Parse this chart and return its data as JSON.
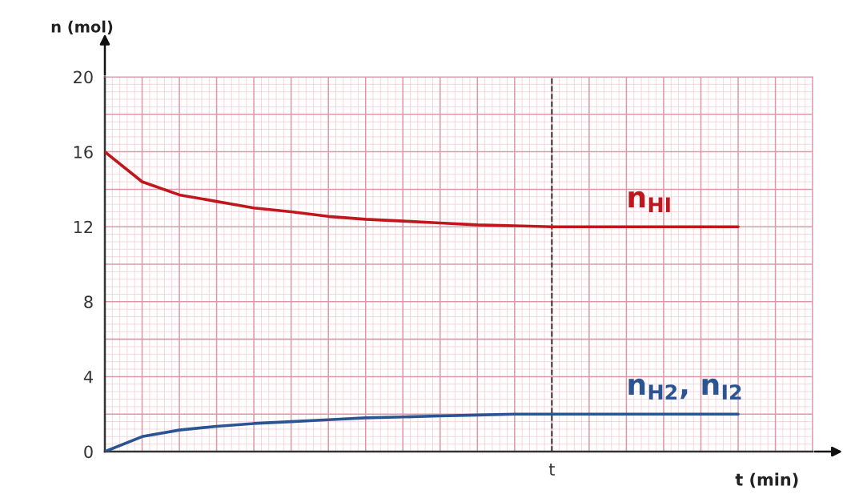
{
  "chart_data": {
    "type": "line",
    "xlabel": "t (min)",
    "ylabel": "n (mol)",
    "categories": [
      null,
      null,
      null,
      null,
      null,
      null,
      null,
      null,
      null,
      null,
      null,
      null,
      "t",
      null,
      null,
      null,
      null,
      null,
      null,
      null
    ],
    "series": [
      {
        "name": "n$_{HI}$",
        "color": "#c0171c",
        "values": [
          16,
          14.4,
          13.7,
          13.35,
          13.0,
          12.8,
          12.55,
          12.4,
          12.3,
          12.2,
          12.1,
          12.05,
          12,
          12,
          12,
          12,
          12,
          12,
          null,
          null
        ]
      },
      {
        "name": "n$_{H2}$, n$_{I2}$",
        "color": "#2b5592",
        "values": [
          0,
          0.8,
          1.15,
          1.35,
          1.5,
          1.6,
          1.7,
          1.8,
          1.85,
          1.9,
          1.95,
          2.0,
          2,
          2,
          2,
          2,
          2,
          2,
          null,
          null
        ]
      }
    ],
    "ylim": [
      0,
      20
    ],
    "yticks": [
      0,
      {
        "value": 2,
        "label": null
      },
      4,
      {
        "value": 6,
        "label": null
      },
      8,
      {
        "value": 10,
        "label": null
      },
      12,
      {
        "value": 14,
        "label": null
      },
      16,
      {
        "value": 18,
        "label": null
      },
      20
    ],
    "grid": true,
    "marker": "none",
    "line_style": "solid",
    "ref_lines": [
      {
        "axis": "x",
        "value": "t",
        "color": "#222222",
        "line_style": "dashed"
      }
    ]
  }
}
